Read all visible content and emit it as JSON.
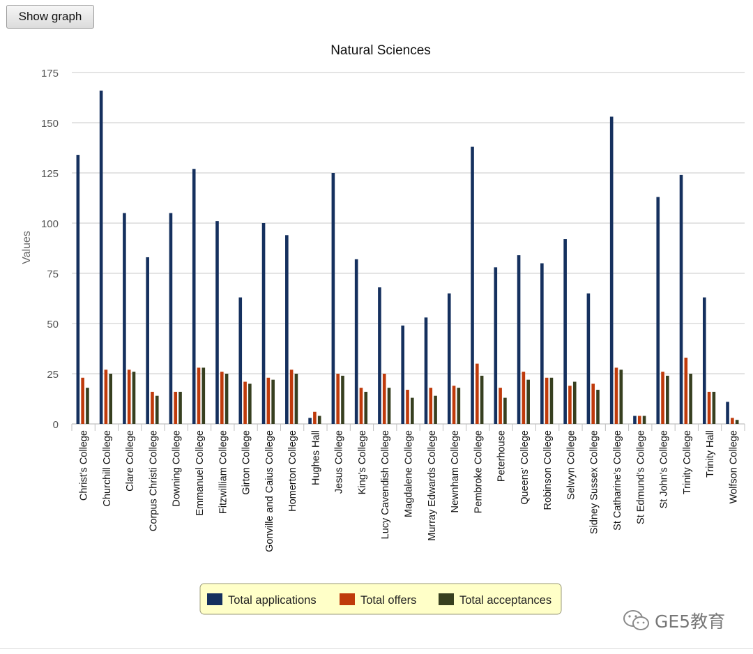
{
  "toolbar": {
    "show_graph_label": "Show graph"
  },
  "watermark": {
    "text": "GE5教育",
    "icon": "wechat-icon"
  },
  "colors": {
    "applications": "#15305e",
    "offers": "#bf3a0b",
    "acceptances": "#373f1f",
    "legend_bg": "#ffffc8",
    "grid": "#c8c8c8"
  },
  "chart_data": {
    "type": "bar",
    "title": "Natural Sciences",
    "xlabel": "",
    "ylabel": "Values",
    "ylim": [
      0,
      175
    ],
    "yticks": [
      0,
      25,
      50,
      75,
      100,
      125,
      150,
      175
    ],
    "grid": true,
    "legend_position": "bottom-center",
    "categories": [
      "Christ's College",
      "Churchill College",
      "Clare College",
      "Corpus Christi College",
      "Downing College",
      "Emmanuel College",
      "Fitzwilliam College",
      "Girton College",
      "Gonville and Caius College",
      "Homerton College",
      "Hughes Hall",
      "Jesus College",
      "King's College",
      "Lucy Cavendish College",
      "Magdalene College",
      "Murray Edwards College",
      "Newnham College",
      "Pembroke College",
      "Peterhouse",
      "Queens' College",
      "Robinson College",
      "Selwyn College",
      "Sidney Sussex College",
      "St Catharine's College",
      "St Edmund's College",
      "St John's College",
      "Trinity College",
      "Trinity Hall",
      "Wolfson College"
    ],
    "series": [
      {
        "name": "Total applications",
        "values": [
          134,
          166,
          105,
          83,
          105,
          127,
          101,
          63,
          100,
          94,
          3,
          125,
          82,
          68,
          49,
          53,
          65,
          138,
          78,
          84,
          80,
          92,
          65,
          153,
          4,
          113,
          124,
          63,
          11
        ]
      },
      {
        "name": "Total offers",
        "values": [
          23,
          27,
          27,
          16,
          16,
          28,
          26,
          21,
          23,
          27,
          6,
          25,
          18,
          25,
          17,
          18,
          19,
          30,
          18,
          26,
          23,
          19,
          20,
          28,
          4,
          26,
          33,
          16,
          3
        ]
      },
      {
        "name": "Total acceptances",
        "values": [
          18,
          25,
          26,
          14,
          16,
          28,
          25,
          20,
          22,
          25,
          4,
          24,
          16,
          18,
          13,
          14,
          18,
          24,
          13,
          22,
          23,
          21,
          17,
          27,
          4,
          24,
          25,
          16,
          2
        ]
      }
    ]
  }
}
